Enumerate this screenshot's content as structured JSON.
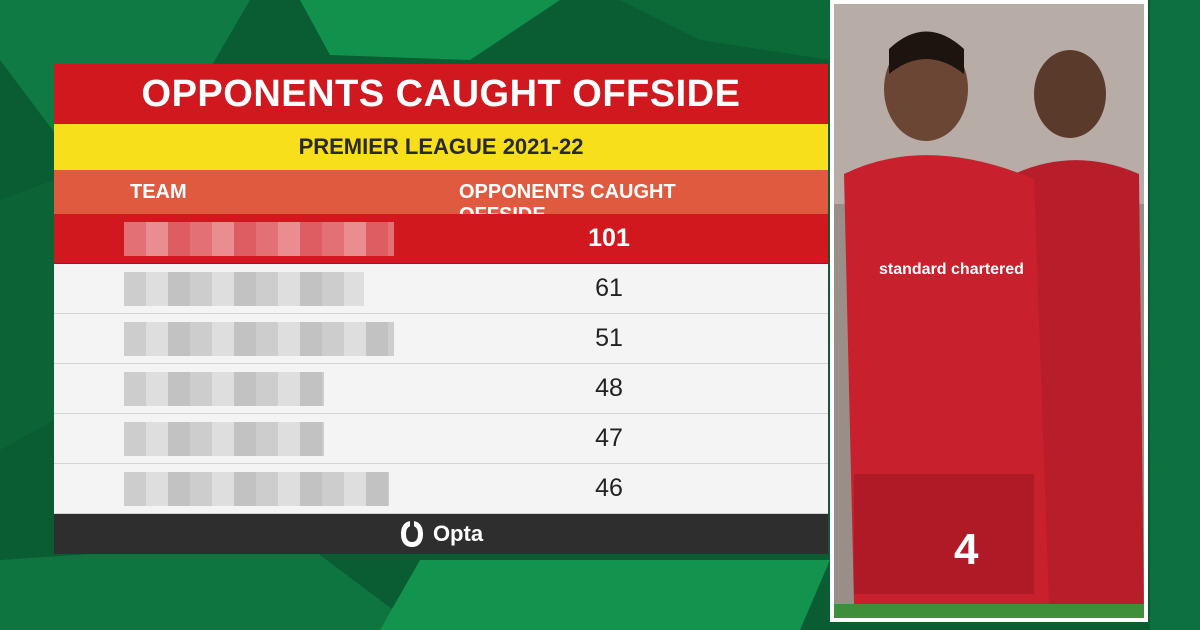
{
  "chart_data": {
    "type": "table",
    "title": "OPPONENTS CAUGHT OFFSIDE",
    "subtitle": "PREMIER LEAGUE 2021-22",
    "columns": [
      "TEAM",
      "OPPONENTS CAUGHT OFFSIDE"
    ],
    "rows": [
      {
        "team": "",
        "value": 101
      },
      {
        "team": "",
        "value": 61
      },
      {
        "team": "",
        "value": 51
      },
      {
        "team": "",
        "value": 48
      },
      {
        "team": "",
        "value": 47
      },
      {
        "team": "",
        "value": 46
      }
    ],
    "team_names_obscured": true,
    "source": "Opta"
  },
  "photo": {
    "sponsor": "standard chartered",
    "shirt_number": "4",
    "colors": {
      "kit": "#c8202c",
      "background": "#0b5a31"
    }
  },
  "colors": {
    "title_bg": "#d0181e",
    "subtitle_bg": "#f7e01b",
    "header_bg": "#e05a3f",
    "row_bg": "#f4f4f4",
    "footer_bg": "#2e2e2e"
  }
}
